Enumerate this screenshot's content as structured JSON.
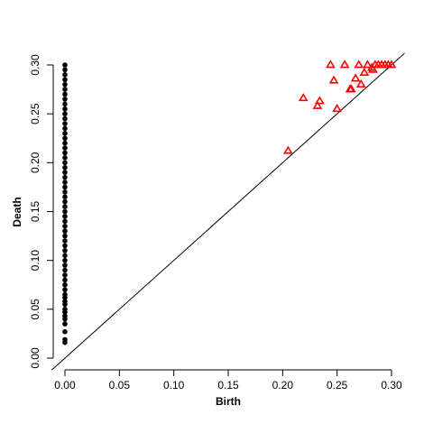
{
  "chart_data": {
    "type": "scatter",
    "xlabel": "Birth",
    "ylabel": "Death",
    "xlim": [
      -0.012,
      0.312
    ],
    "ylim": [
      -0.012,
      0.312
    ],
    "xticks": [
      {
        "value": 0,
        "label": "0.00"
      },
      {
        "value": 0.05,
        "label": "0.05"
      },
      {
        "value": 0.1,
        "label": "0.10"
      },
      {
        "value": 0.15,
        "label": "0.15"
      },
      {
        "value": 0.2,
        "label": "0.20"
      },
      {
        "value": 0.25,
        "label": "0.25"
      },
      {
        "value": 0.3,
        "label": "0.30"
      }
    ],
    "yticks": [
      {
        "value": 0,
        "label": "0.00"
      },
      {
        "value": 0.05,
        "label": "0.05"
      },
      {
        "value": 0.1,
        "label": "0.10"
      },
      {
        "value": 0.15,
        "label": "0.15"
      },
      {
        "value": 0.2,
        "label": "0.20"
      },
      {
        "value": 0.25,
        "label": "0.25"
      },
      {
        "value": 0.3,
        "label": "0.30"
      }
    ],
    "diagonal": true,
    "series": [
      {
        "color": "#000000",
        "marker": "circle",
        "x": [
          0,
          0,
          0,
          0,
          0,
          0,
          0,
          0,
          0,
          0,
          0,
          0,
          0,
          0,
          0,
          0,
          0,
          0,
          0,
          0,
          0,
          0,
          0,
          0,
          0,
          0,
          0,
          0,
          0,
          0,
          0,
          0,
          0,
          0,
          0,
          0,
          0,
          0,
          0,
          0,
          0,
          0,
          0,
          0,
          0,
          0,
          0,
          0,
          0,
          0,
          0,
          0,
          0,
          0,
          0,
          0,
          0,
          0,
          0
        ],
        "values": [
          0.016,
          0.019,
          0.027,
          0.035,
          0.04,
          0.043,
          0.047,
          0.05,
          0.055,
          0.058,
          0.062,
          0.065,
          0.07,
          0.075,
          0.08,
          0.085,
          0.09,
          0.095,
          0.1,
          0.105,
          0.11,
          0.115,
          0.12,
          0.125,
          0.13,
          0.135,
          0.14,
          0.145,
          0.15,
          0.155,
          0.16,
          0.165,
          0.17,
          0.175,
          0.18,
          0.185,
          0.19,
          0.195,
          0.2,
          0.205,
          0.21,
          0.215,
          0.22,
          0.225,
          0.23,
          0.235,
          0.24,
          0.245,
          0.25,
          0.255,
          0.26,
          0.265,
          0.27,
          0.275,
          0.28,
          0.285,
          0.29,
          0.295,
          0.3
        ]
      },
      {
        "color": "#ff0000",
        "marker": "triangle",
        "x": [
          0.205,
          0.219,
          0.232,
          0.234,
          0.244,
          0.247,
          0.25,
          0.257,
          0.262,
          0.263,
          0.267,
          0.27,
          0.272,
          0.275,
          0.278,
          0.282,
          0.283,
          0.285,
          0.288,
          0.291,
          0.294,
          0.297,
          0.3
        ],
        "values": [
          0.212,
          0.266,
          0.258,
          0.263,
          0.3,
          0.284,
          0.255,
          0.3,
          0.275,
          0.275,
          0.286,
          0.3,
          0.28,
          0.292,
          0.3,
          0.297,
          0.295,
          0.3,
          0.3,
          0.3,
          0.3,
          0.3,
          0.3
        ]
      }
    ]
  }
}
